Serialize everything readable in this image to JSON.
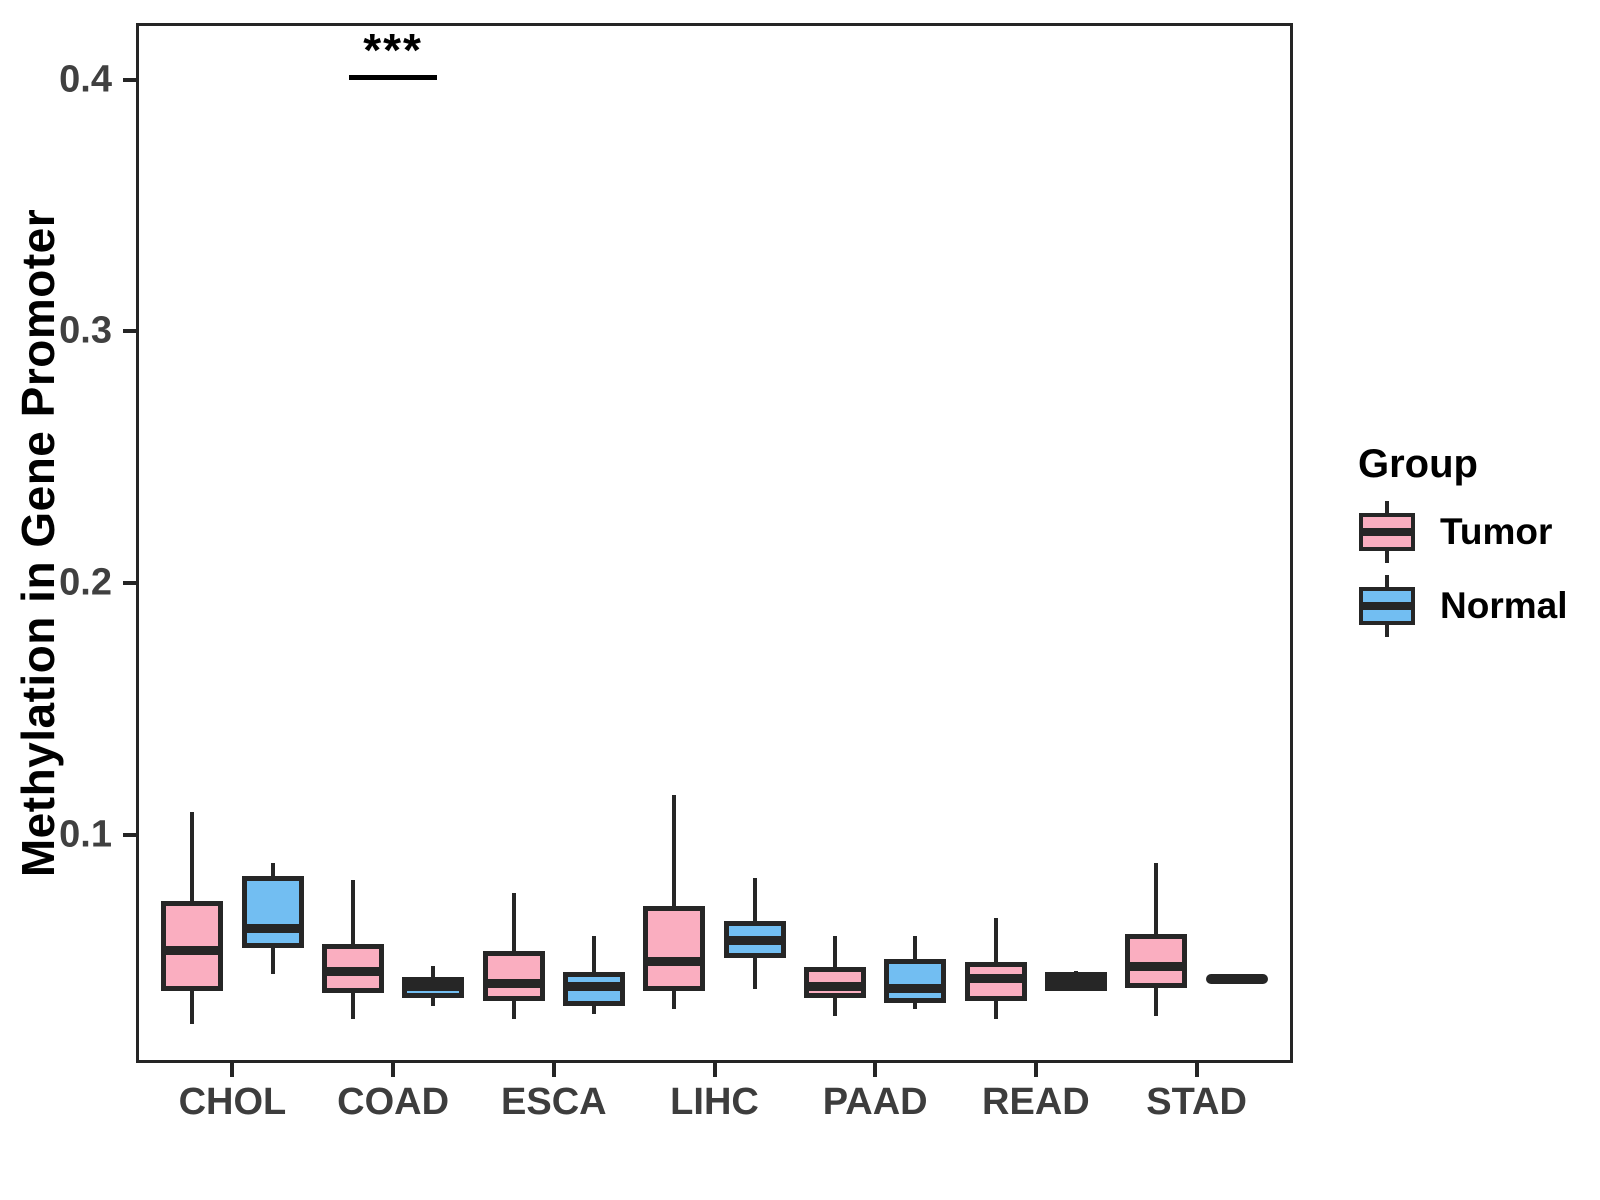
{
  "figure": {
    "background": "#FFFFFF",
    "y_axis_title": "Methylation in Gene Promoter"
  },
  "colors": {
    "tumor_fill": "#FAAEC0",
    "normal_fill": "#72BEF2",
    "stroke": "#262626",
    "panel_border": "#252525",
    "tick_label": "#404040",
    "axis_title": "#000000"
  },
  "legend": {
    "title": "Group",
    "entries": [
      {
        "label": "Tumor",
        "color": "#FAAEC0"
      },
      {
        "label": "Normal",
        "color": "#72BEF2"
      }
    ]
  },
  "annotation": {
    "text": "***",
    "category": "COAD",
    "bar_y_value": 0.402
  },
  "chart_data": {
    "type": "boxplot",
    "title": "",
    "xlabel": "",
    "ylabel": "Methylation in Gene Promoter",
    "categories": [
      "CHOL",
      "COAD",
      "ESCA",
      "LIHC",
      "PAAD",
      "READ",
      "STAD"
    ],
    "y_ticks": [
      0.1,
      0.2,
      0.3,
      0.4
    ],
    "ylim": [
      0.0095,
      0.4225
    ],
    "grid": false,
    "legend_position": "right",
    "series": [
      {
        "name": "Tumor",
        "color": "#FAAEC0",
        "boxes": [
          {
            "category": "CHOL",
            "min": 0.025,
            "q1": 0.039,
            "median": 0.054,
            "q3": 0.073,
            "max": 0.109
          },
          {
            "category": "COAD",
            "min": 0.027,
            "q1": 0.038,
            "median": 0.046,
            "q3": 0.056,
            "max": 0.082
          },
          {
            "category": "ESCA",
            "min": 0.027,
            "q1": 0.035,
            "median": 0.041,
            "q3": 0.053,
            "max": 0.077
          },
          {
            "category": "LIHC",
            "min": 0.031,
            "q1": 0.039,
            "median": 0.05,
            "q3": 0.071,
            "max": 0.116
          },
          {
            "category": "PAAD",
            "min": 0.028,
            "q1": 0.036,
            "median": 0.04,
            "q3": 0.047,
            "max": 0.06
          },
          {
            "category": "READ",
            "min": 0.027,
            "q1": 0.035,
            "median": 0.043,
            "q3": 0.049,
            "max": 0.067
          },
          {
            "category": "STAD",
            "min": 0.028,
            "q1": 0.04,
            "median": 0.048,
            "q3": 0.06,
            "max": 0.089
          }
        ]
      },
      {
        "name": "Normal",
        "color": "#72BEF2",
        "boxes": [
          {
            "category": "CHOL",
            "min": 0.045,
            "q1": 0.056,
            "median": 0.063,
            "q3": 0.083,
            "max": 0.089
          },
          {
            "category": "COAD",
            "min": 0.032,
            "q1": 0.036,
            "median": 0.04,
            "q3": 0.043,
            "max": 0.048
          },
          {
            "category": "ESCA",
            "min": 0.029,
            "q1": 0.033,
            "median": 0.04,
            "q3": 0.045,
            "max": 0.06
          },
          {
            "category": "LIHC",
            "min": 0.039,
            "q1": 0.052,
            "median": 0.058,
            "q3": 0.065,
            "max": 0.083
          },
          {
            "category": "PAAD",
            "min": 0.031,
            "q1": 0.034,
            "median": 0.039,
            "q3": 0.05,
            "max": 0.06
          },
          {
            "category": "READ",
            "min": 0.039,
            "q1": 0.039,
            "median": 0.042,
            "q3": 0.045,
            "max": 0.046
          },
          {
            "category": "STAD",
            "min": 0.043,
            "q1": 0.043,
            "median": 0.043,
            "q3": 0.043,
            "max": 0.043
          }
        ]
      }
    ]
  }
}
